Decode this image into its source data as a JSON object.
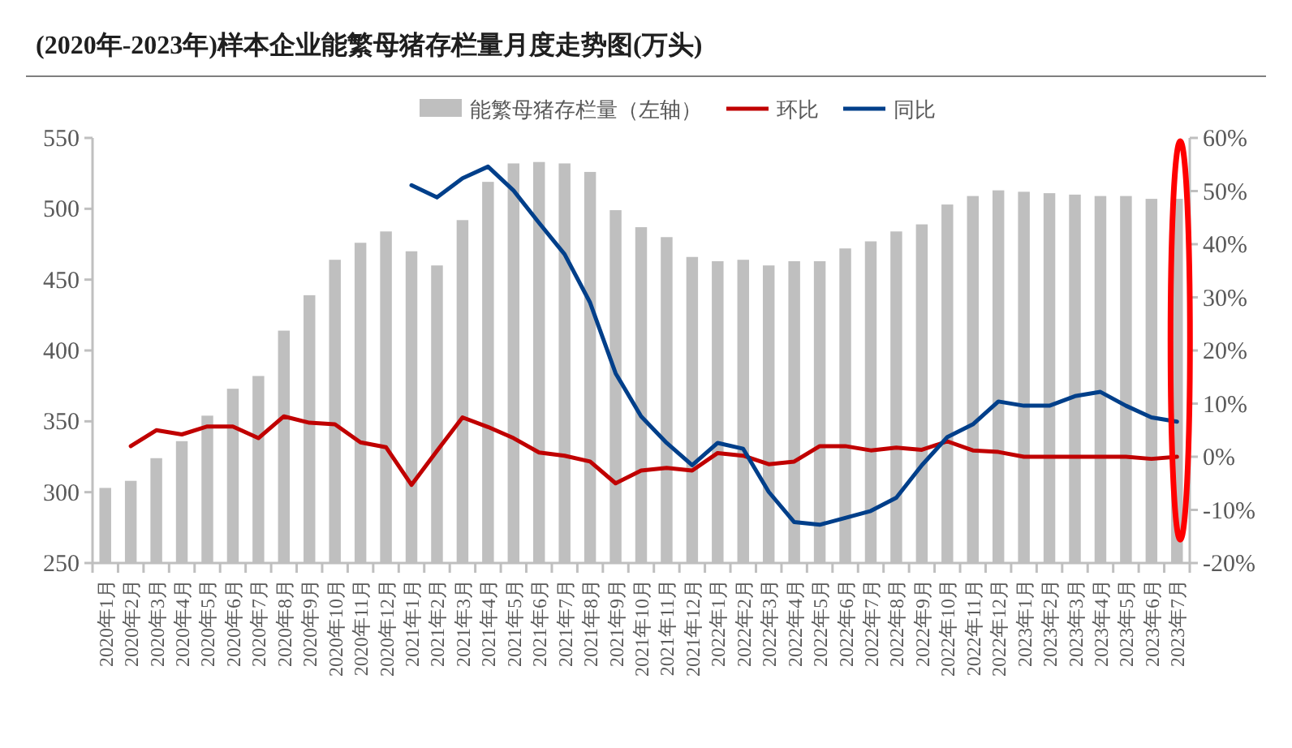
{
  "chart_data": {
    "type": "bar",
    "title": "(2020年-2023年)样本企业能繁母猪存栏量月度走势图(万头)",
    "categories": [
      "2020年1月",
      "2020年2月",
      "2020年3月",
      "2020年4月",
      "2020年5月",
      "2020年6月",
      "2020年7月",
      "2020年8月",
      "2020年9月",
      "2020年10月",
      "2020年11月",
      "2020年12月",
      "2021年1月",
      "2021年2月",
      "2021年3月",
      "2021年4月",
      "2021年5月",
      "2021年6月",
      "2021年7月",
      "2021年8月",
      "2021年9月",
      "2021年10月",
      "2021年11月",
      "2021年12月",
      "2022年1月",
      "2022年2月",
      "2022年3月",
      "2022年4月",
      "2022年5月",
      "2022年6月",
      "2022年7月",
      "2022年8月",
      "2022年9月",
      "2022年10月",
      "2022年11月",
      "2022年12月",
      "2023年1月",
      "2023年2月",
      "2023年3月",
      "2023年4月",
      "2023年5月",
      "2023年6月",
      "2023年7月"
    ],
    "series": [
      {
        "name": "能繁母猪存栏量（左轴）",
        "color": "#bfbfbf",
        "values": [
          303,
          308,
          324,
          336,
          354,
          373,
          382,
          414,
          439,
          464,
          476,
          484,
          470,
          460,
          492,
          519,
          532,
          533,
          532,
          526,
          499,
          487,
          480,
          466,
          463,
          464,
          460,
          463,
          463,
          472,
          477,
          484,
          489,
          503,
          509,
          513,
          512,
          511,
          510,
          509,
          509,
          507,
          507
        ]
      },
      {
        "name": "环比",
        "type": "line",
        "axis": "y2",
        "color": "#c00000",
        "values": [
          null,
          2.0,
          5.0,
          4.2,
          5.7,
          5.7,
          3.5,
          7.6,
          6.4,
          6.1,
          2.7,
          1.8,
          -5.3,
          1.1,
          7.4,
          5.6,
          3.5,
          0.8,
          0.2,
          -0.9,
          -5.0,
          -2.6,
          -2.1,
          -2.6,
          0.7,
          0.2,
          -1.4,
          -0.9,
          2.0,
          2.0,
          1.2,
          1.7,
          1.3,
          2.9,
          1.2,
          0.9,
          0,
          0,
          0,
          0,
          0,
          -0.4,
          0
        ]
      },
      {
        "name": "同比",
        "type": "line",
        "axis": "y2",
        "color": "#003f8a",
        "values": [
          null,
          null,
          null,
          null,
          null,
          null,
          null,
          null,
          null,
          null,
          null,
          null,
          51.1,
          48.8,
          52.4,
          54.6,
          50.1,
          44.0,
          38.1,
          29.0,
          15.7,
          7.6,
          2.6,
          -1.6,
          2.6,
          1.5,
          -6.6,
          -12.3,
          -12.8,
          -11.5,
          -10.2,
          -7.7,
          -1.6,
          3.7,
          6.1,
          10.4,
          9.6,
          9.6,
          11.4,
          12.2,
          9.6,
          7.4,
          6.6
        ]
      }
    ],
    "ylim": [
      250,
      550
    ],
    "yticks": [
      250,
      300,
      350,
      400,
      450,
      500,
      550
    ],
    "y2lim": [
      -20,
      60
    ],
    "y2ticks": [
      {
        "value": -20,
        "label": "-20%"
      },
      {
        "value": -10,
        "label": "-10%"
      },
      {
        "value": 0,
        "label": "0%"
      },
      {
        "value": 10,
        "label": "10%"
      },
      {
        "value": 20,
        "label": "20%"
      },
      {
        "value": 30,
        "label": "30%"
      },
      {
        "value": 40,
        "label": "40%"
      },
      {
        "value": 50,
        "label": "50%"
      },
      {
        "value": 60,
        "label": "60%"
      }
    ],
    "legend": "top",
    "grid": false
  }
}
